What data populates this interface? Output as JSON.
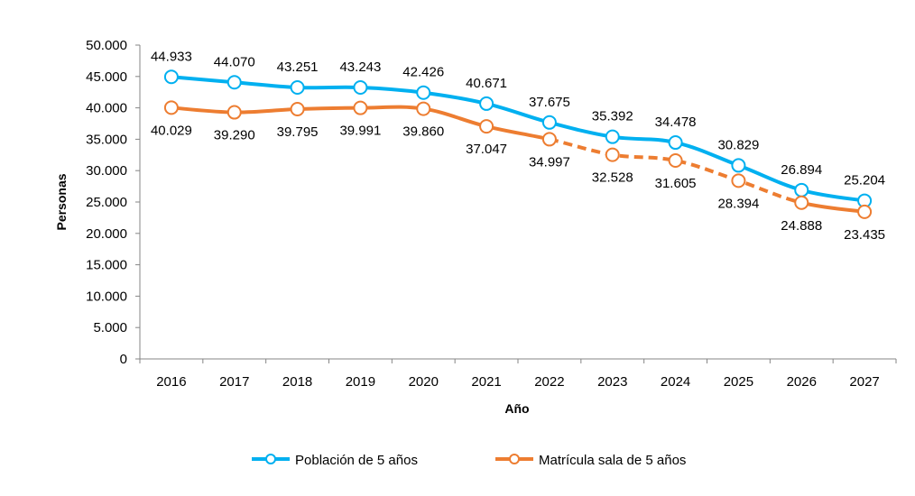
{
  "chart_data": {
    "type": "line",
    "xlabel": "Año",
    "ylabel": "Personas",
    "ylim": [
      0,
      50000
    ],
    "yticks": [
      0,
      5000,
      10000,
      15000,
      20000,
      25000,
      30000,
      35000,
      40000,
      45000,
      50000
    ],
    "ytick_labels": [
      "0",
      "5.000",
      "10.000",
      "15.000",
      "20.000",
      "25.000",
      "30.000",
      "35.000",
      "40.000",
      "45.000",
      "50.000"
    ],
    "categories": [
      "2016",
      "2017",
      "2018",
      "2019",
      "2020",
      "2021",
      "2022",
      "2023",
      "2024",
      "2025",
      "2026",
      "2027"
    ],
    "legend_position": "bottom",
    "grid": false,
    "series": [
      {
        "name": "Población de 5 años",
        "color": "#00B0F0",
        "values": [
          44933,
          44070,
          43251,
          43243,
          42426,
          40671,
          37675,
          35392,
          34478,
          30829,
          26894,
          25204
        ],
        "labels": [
          "44.933",
          "44.070",
          "43.251",
          "43.243",
          "42.426",
          "40.671",
          "37.675",
          "35.392",
          "34.478",
          "30.829",
          "26.894",
          "25.204"
        ],
        "label_position": "above",
        "line_style": "solid"
      },
      {
        "name": "Matrícula sala de 5 años",
        "color": "#ED7D31",
        "values": [
          40029,
          39290,
          39795,
          39991,
          39860,
          37047,
          34997,
          32528,
          31605,
          28394,
          24888,
          23435
        ],
        "labels": [
          "40.029",
          "39.290",
          "39.795",
          "39.991",
          "39.860",
          "37.047",
          "34.997",
          "32.528",
          "31.605",
          "28.394",
          "24.888",
          "23.435"
        ],
        "label_position": "below",
        "line_style": "solid until 2022, then dashed between 2022 and 2026, solid 2026–2027"
      }
    ]
  }
}
